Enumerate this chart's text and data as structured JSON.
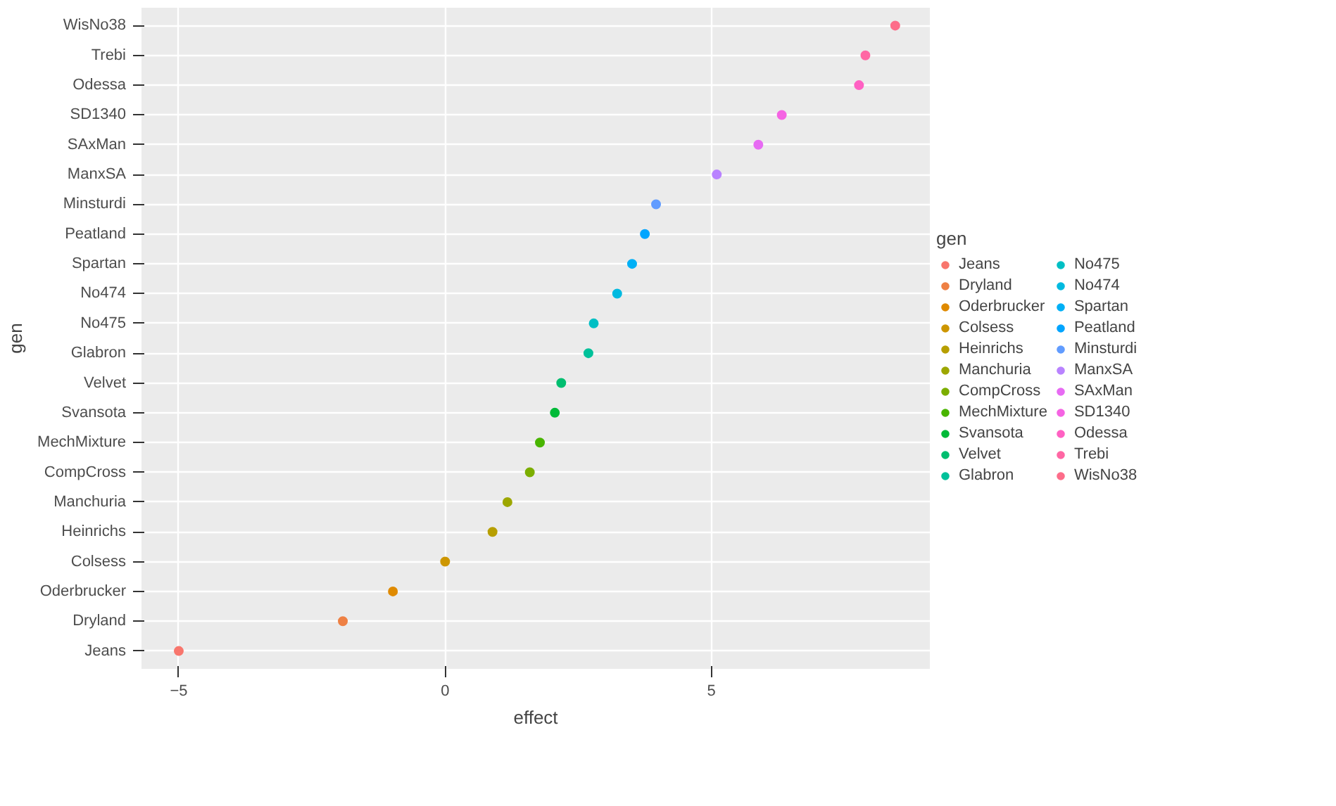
{
  "chart_data": {
    "type": "scatter",
    "orientation": "horizontal",
    "xlabel": "effect",
    "ylabel": "gen",
    "legend_title": "gen",
    "categories": [
      "WisNo38",
      "Trebi",
      "Odessa",
      "SD1340",
      "SAxMan",
      "ManxSA",
      "Minsturdi",
      "Peatland",
      "Spartan",
      "No474",
      "No475",
      "Glabron",
      "Velvet",
      "Svansota",
      "MechMixture",
      "CompCross",
      "Manchuria",
      "Heinrichs",
      "Colsess",
      "Oderbrucker",
      "Dryland",
      "Jeans"
    ],
    "series": [
      {
        "name": "Jeans",
        "color": "#F8766D",
        "values": [
          null,
          null,
          null,
          null,
          null,
          null,
          null,
          null,
          null,
          null,
          null,
          null,
          null,
          null,
          null,
          null,
          null,
          null,
          null,
          null,
          null,
          -5.0
        ]
      },
      {
        "name": "Dryland",
        "color": "#EE8044",
        "values": [
          null,
          null,
          null,
          null,
          null,
          null,
          null,
          null,
          null,
          null,
          null,
          null,
          null,
          null,
          null,
          null,
          null,
          null,
          null,
          null,
          -1.92,
          null
        ]
      },
      {
        "name": "Oderbrucker",
        "color": "#DF8A00",
        "values": [
          null,
          null,
          null,
          null,
          null,
          null,
          null,
          null,
          null,
          null,
          null,
          null,
          null,
          null,
          null,
          null,
          null,
          null,
          null,
          -0.98,
          null,
          null
        ]
      },
      {
        "name": "Colsess",
        "color": "#CD9600",
        "values": [
          null,
          null,
          null,
          null,
          null,
          null,
          null,
          null,
          null,
          null,
          null,
          null,
          null,
          null,
          null,
          null,
          null,
          null,
          0.0,
          null,
          null,
          null
        ]
      },
      {
        "name": "Heinrichs",
        "color": "#B79F00",
        "values": [
          null,
          null,
          null,
          null,
          null,
          null,
          null,
          null,
          null,
          null,
          null,
          null,
          null,
          null,
          null,
          null,
          null,
          0.89,
          null,
          null,
          null,
          null
        ]
      },
      {
        "name": "Manchuria",
        "color": "#9DA700",
        "values": [
          null,
          null,
          null,
          null,
          null,
          null,
          null,
          null,
          null,
          null,
          null,
          null,
          null,
          null,
          null,
          null,
          1.17,
          null,
          null,
          null,
          null,
          null
        ]
      },
      {
        "name": "CompCross",
        "color": "#7CAE00",
        "values": [
          null,
          null,
          null,
          null,
          null,
          null,
          null,
          null,
          null,
          null,
          null,
          null,
          null,
          null,
          null,
          1.59,
          null,
          null,
          null,
          null,
          null,
          null
        ]
      },
      {
        "name": "MechMixture",
        "color": "#49B500",
        "values": [
          null,
          null,
          null,
          null,
          null,
          null,
          null,
          null,
          null,
          null,
          null,
          null,
          null,
          null,
          1.78,
          null,
          null,
          null,
          null,
          null,
          null,
          null
        ]
      },
      {
        "name": "Svansota",
        "color": "#00BA38",
        "values": [
          null,
          null,
          null,
          null,
          null,
          null,
          null,
          null,
          null,
          null,
          null,
          null,
          null,
          2.06,
          null,
          null,
          null,
          null,
          null,
          null,
          null,
          null
        ]
      },
      {
        "name": "Velvet",
        "color": "#00BE70",
        "values": [
          null,
          null,
          null,
          null,
          null,
          null,
          null,
          null,
          null,
          null,
          null,
          null,
          2.18,
          null,
          null,
          null,
          null,
          null,
          null,
          null,
          null,
          null
        ]
      },
      {
        "name": "Glabron",
        "color": "#00C19A",
        "values": [
          null,
          null,
          null,
          null,
          null,
          null,
          null,
          null,
          null,
          null,
          null,
          2.69,
          null,
          null,
          null,
          null,
          null,
          null,
          null,
          null,
          null,
          null
        ]
      },
      {
        "name": "No475",
        "color": "#00BFC4",
        "values": [
          null,
          null,
          null,
          null,
          null,
          null,
          null,
          null,
          null,
          null,
          2.79,
          null,
          null,
          null,
          null,
          null,
          null,
          null,
          null,
          null,
          null,
          null
        ]
      },
      {
        "name": "No474",
        "color": "#00BAE0",
        "values": [
          null,
          null,
          null,
          null,
          null,
          null,
          null,
          null,
          null,
          3.23,
          null,
          null,
          null,
          null,
          null,
          null,
          null,
          null,
          null,
          null,
          null,
          null
        ]
      },
      {
        "name": "Spartan",
        "color": "#00B0F6",
        "values": [
          null,
          null,
          null,
          null,
          null,
          null,
          null,
          null,
          3.51,
          null,
          null,
          null,
          null,
          null,
          null,
          null,
          null,
          null,
          null,
          null,
          null,
          null
        ]
      },
      {
        "name": "Peatland",
        "color": "#00A5FF",
        "values": [
          null,
          null,
          null,
          null,
          null,
          null,
          null,
          3.75,
          null,
          null,
          null,
          null,
          null,
          null,
          null,
          null,
          null,
          null,
          null,
          null,
          null,
          null
        ]
      },
      {
        "name": "Minsturdi",
        "color": "#619CFF",
        "values": [
          null,
          null,
          null,
          null,
          null,
          null,
          3.96,
          null,
          null,
          null,
          null,
          null,
          null,
          null,
          null,
          null,
          null,
          null,
          null,
          null,
          null,
          null
        ]
      },
      {
        "name": "ManxSA",
        "color": "#B983FF",
        "values": [
          null,
          null,
          null,
          null,
          null,
          5.1,
          null,
          null,
          null,
          null,
          null,
          null,
          null,
          null,
          null,
          null,
          null,
          null,
          null,
          null,
          null,
          null
        ]
      },
      {
        "name": "SAxMan",
        "color": "#E76BF3",
        "values": [
          null,
          null,
          null,
          null,
          5.88,
          null,
          null,
          null,
          null,
          null,
          null,
          null,
          null,
          null,
          null,
          null,
          null,
          null,
          null,
          null,
          null,
          null
        ]
      },
      {
        "name": "SD1340",
        "color": "#F564E3",
        "values": [
          null,
          null,
          null,
          6.32,
          null,
          null,
          null,
          null,
          null,
          null,
          null,
          null,
          null,
          null,
          null,
          null,
          null,
          null,
          null,
          null,
          null,
          null
        ]
      },
      {
        "name": "Odessa",
        "color": "#FF61C3",
        "values": [
          null,
          null,
          7.77,
          null,
          null,
          null,
          null,
          null,
          null,
          null,
          null,
          null,
          null,
          null,
          null,
          null,
          null,
          null,
          null,
          null,
          null,
          null
        ]
      },
      {
        "name": "Trebi",
        "color": "#FF67A4",
        "values": [
          null,
          7.89,
          null,
          null,
          null,
          null,
          null,
          null,
          null,
          null,
          null,
          null,
          null,
          null,
          null,
          null,
          null,
          null,
          null,
          null,
          null,
          null
        ]
      },
      {
        "name": "WisNo38",
        "color": "#FD6D8A",
        "values": [
          8.45,
          null,
          null,
          null,
          null,
          null,
          null,
          null,
          null,
          null,
          null,
          null,
          null,
          null,
          null,
          null,
          null,
          null,
          null,
          null,
          null,
          null
        ]
      }
    ],
    "xlim": [
      -5.7,
      9.1
    ],
    "xticks": [
      -5,
      0,
      5
    ],
    "grid": true,
    "legend": "right",
    "marker": "circle"
  }
}
